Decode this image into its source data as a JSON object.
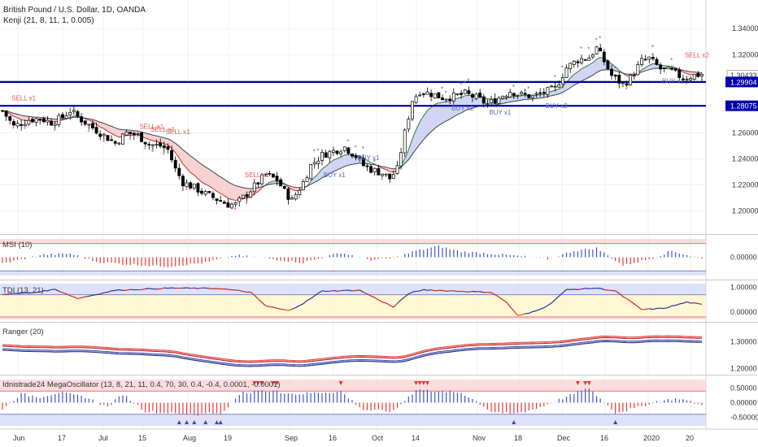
{
  "header": {
    "symbol": "British Pound / U.S. Dollar, 1D, OANDA",
    "indicator": "Kenji (21, 8, 11, 1, 0.005)"
  },
  "colors": {
    "bull": "#ffffff",
    "bear": "#000000",
    "hline": "#0000aa",
    "sell_cloud": "#f7c9c9",
    "buy_cloud": "#c9cdf2",
    "sell_text": "#ef5350",
    "buy_text": "#5c6bc0",
    "pos_bar": "#3f51d8",
    "neg_bar": "#e53935",
    "grid": "#eef0f3"
  },
  "chart_data": [
    {
      "type": "candlestick",
      "title": "British Pound / U.S. Dollar, 1D, OANDA",
      "y_ticks": [
        "1.34000",
        "1.32000",
        "1.30000",
        "1.28000",
        "1.26000",
        "1.24000",
        "1.22000",
        "1.20000"
      ],
      "x_ticks": [
        "Jun",
        "17",
        "Jul",
        "15",
        "Aug",
        "19",
        "Sep",
        "16",
        "Oct",
        "14",
        "Nov",
        "18",
        "Dec",
        "16",
        "2020",
        "20"
      ],
      "ylim": [
        1.186,
        1.357
      ],
      "price_label": "1.30433",
      "last_price": 1.30433,
      "horizontal_lines": [
        {
          "value": 1.29904,
          "label": "1.29904"
        },
        {
          "value": 1.28075,
          "label": "1.28075"
        }
      ],
      "anchors": [
        [
          0,
          1.277
        ],
        [
          3,
          1.265
        ],
        [
          7,
          1.27
        ],
        [
          10,
          1.271
        ],
        [
          13,
          1.268
        ],
        [
          16,
          1.272
        ],
        [
          18,
          1.277
        ],
        [
          21,
          1.27
        ],
        [
          24,
          1.264
        ],
        [
          27,
          1.258
        ],
        [
          30,
          1.252
        ],
        [
          33,
          1.26
        ],
        [
          36,
          1.258
        ],
        [
          39,
          1.251
        ],
        [
          42,
          1.25
        ],
        [
          44,
          1.247
        ],
        [
          46,
          1.232
        ],
        [
          48,
          1.222
        ],
        [
          51,
          1.218
        ],
        [
          54,
          1.213
        ],
        [
          57,
          1.209
        ],
        [
          60,
          1.205
        ],
        [
          62,
          1.205
        ],
        [
          65,
          1.213
        ],
        [
          68,
          1.222
        ],
        [
          70,
          1.228
        ],
        [
          73,
          1.224
        ],
        [
          75,
          1.215
        ],
        [
          77,
          1.208
        ],
        [
          80,
          1.222
        ],
        [
          82,
          1.235
        ],
        [
          85,
          1.243
        ],
        [
          88,
          1.246
        ],
        [
          91,
          1.249
        ],
        [
          94,
          1.242
        ],
        [
          96,
          1.235
        ],
        [
          98,
          1.232
        ],
        [
          101,
          1.229
        ],
        [
          103,
          1.225
        ],
        [
          105,
          1.232
        ],
        [
          107,
          1.26
        ],
        [
          109,
          1.285
        ],
        [
          111,
          1.292
        ],
        [
          114,
          1.29
        ],
        [
          117,
          1.287
        ],
        [
          120,
          1.288
        ],
        [
          123,
          1.29
        ],
        [
          126,
          1.287
        ],
        [
          129,
          1.282
        ],
        [
          132,
          1.287
        ],
        [
          135,
          1.292
        ],
        [
          138,
          1.289
        ],
        [
          141,
          1.288
        ],
        [
          144,
          1.291
        ],
        [
          147,
          1.294
        ],
        [
          150,
          1.31
        ],
        [
          153,
          1.316
        ],
        [
          156,
          1.318
        ],
        [
          158,
          1.325
        ],
        [
          160,
          1.315
        ],
        [
          162,
          1.304
        ],
        [
          165,
          1.297
        ],
        [
          167,
          1.302
        ],
        [
          170,
          1.315
        ],
        [
          172,
          1.317
        ],
        [
          175,
          1.309
        ],
        [
          178,
          1.307
        ],
        [
          181,
          1.302
        ],
        [
          184,
          1.304
        ],
        [
          186,
          1.305
        ]
      ],
      "annotations": [
        {
          "text": "SELL x1",
          "x": 5,
          "y": 1.285,
          "side": "sell"
        },
        {
          "text": "SELL x1",
          "x": 39,
          "y": 1.263,
          "side": "sell"
        },
        {
          "text": "SELL x1",
          "x": 42,
          "y": 1.261,
          "side": "sell"
        },
        {
          "text": "SELL x1",
          "x": 46,
          "y": 1.259,
          "side": "sell"
        },
        {
          "text": "SELL x1",
          "x": 67,
          "y": 1.226,
          "side": "sell"
        },
        {
          "text": "BUY x1",
          "x": 88,
          "y": 1.226,
          "side": "buy"
        },
        {
          "text": "BUY x1",
          "x": 97,
          "y": 1.239,
          "side": "buy"
        },
        {
          "text": "BUY x1",
          "x": 122,
          "y": 1.277,
          "side": "buy"
        },
        {
          "text": "BUY x1",
          "x": 132,
          "y": 1.274,
          "side": "buy"
        },
        {
          "text": "BUY x2",
          "x": 147,
          "y": 1.279,
          "side": "buy"
        },
        {
          "text": "BUY x1",
          "x": 178,
          "y": 1.298,
          "side": "buy"
        },
        {
          "text": "SELL x2",
          "x": 184,
          "y": 1.318,
          "side": "sell"
        }
      ]
    },
    {
      "type": "bar",
      "title": "MSI (10)",
      "ylim": [
        -1,
        1
      ],
      "y_ticks": [
        "0.00000"
      ],
      "bands": [
        0.75,
        -0.75
      ],
      "anchors": [
        [
          0,
          -0.35
        ],
        [
          10,
          0.12
        ],
        [
          18,
          0.2
        ],
        [
          25,
          -0.25
        ],
        [
          34,
          -0.4
        ],
        [
          44,
          -0.5
        ],
        [
          54,
          -0.3
        ],
        [
          62,
          0.1
        ],
        [
          70,
          -0.05
        ],
        [
          80,
          -0.3
        ],
        [
          90,
          0.25
        ],
        [
          98,
          -0.15
        ],
        [
          104,
          -0.05
        ],
        [
          110,
          0.35
        ],
        [
          116,
          0.6
        ],
        [
          122,
          0.3
        ],
        [
          130,
          0.2
        ],
        [
          138,
          0.05
        ],
        [
          145,
          -0.1
        ],
        [
          152,
          0.35
        ],
        [
          158,
          0.5
        ],
        [
          165,
          -0.45
        ],
        [
          172,
          -0.1
        ],
        [
          178,
          0.35
        ],
        [
          186,
          -0.1
        ]
      ]
    },
    {
      "type": "line",
      "title": "TDI (13, 21)",
      "ylim": [
        -0.3,
        1.15
      ],
      "y_ticks": [
        "1.00000",
        "0.00000"
      ],
      "bands": [
        0.7,
        -0.2
      ],
      "anchors": [
        [
          0,
          0.72
        ],
        [
          8,
          0.78
        ],
        [
          14,
          0.92
        ],
        [
          20,
          0.55
        ],
        [
          30,
          0.88
        ],
        [
          45,
          0.97
        ],
        [
          58,
          0.95
        ],
        [
          66,
          0.8
        ],
        [
          70,
          0.25
        ],
        [
          76,
          0.05
        ],
        [
          80,
          0.35
        ],
        [
          85,
          0.85
        ],
        [
          95,
          0.88
        ],
        [
          100,
          0.5
        ],
        [
          104,
          0.2
        ],
        [
          108,
          0.75
        ],
        [
          112,
          0.9
        ],
        [
          120,
          0.85
        ],
        [
          130,
          0.8
        ],
        [
          134,
          0.4
        ],
        [
          137,
          -0.15
        ],
        [
          140,
          -0.05
        ],
        [
          145,
          0.25
        ],
        [
          150,
          0.9
        ],
        [
          158,
          0.97
        ],
        [
          163,
          0.85
        ],
        [
          170,
          0.1
        ],
        [
          176,
          0.15
        ],
        [
          182,
          0.4
        ],
        [
          186,
          0.3
        ]
      ]
    },
    {
      "type": "line",
      "title": "Ranger (20)",
      "ylim": [
        1.19,
        1.355
      ],
      "y_ticks": [
        "1.30000",
        "1.20000"
      ],
      "series_count": 6
    },
    {
      "type": "bar",
      "title": "Idnistrade24 MegaOscillator (13, 8, 21, 11, 0.4, 70, 30, 0.4, -0.4, 0.0001, -0.0001)",
      "ylim": [
        -0.8,
        0.8
      ],
      "y_ticks": [
        "0.50000",
        "0.00000",
        "-0.50000"
      ],
      "bands": [
        0.4,
        -0.4
      ],
      "anchors": [
        [
          0,
          -0.2
        ],
        [
          5,
          0.3
        ],
        [
          10,
          0.2
        ],
        [
          15,
          0.35
        ],
        [
          22,
          0.2
        ],
        [
          28,
          -0.15
        ],
        [
          32,
          0.3
        ],
        [
          38,
          -0.3
        ],
        [
          45,
          -0.35
        ],
        [
          52,
          -0.4
        ],
        [
          58,
          -0.35
        ],
        [
          64,
          0.35
        ],
        [
          72,
          0.4
        ],
        [
          78,
          0.3
        ],
        [
          84,
          0.35
        ],
        [
          90,
          0.38
        ],
        [
          96,
          -0.25
        ],
        [
          104,
          -0.3
        ],
        [
          110,
          0.45
        ],
        [
          116,
          0.4
        ],
        [
          122,
          0.35
        ],
        [
          126,
          0.05
        ],
        [
          130,
          -0.3
        ],
        [
          136,
          -0.4
        ],
        [
          142,
          -0.2
        ],
        [
          148,
          0.1
        ],
        [
          156,
          0.5
        ],
        [
          163,
          -0.35
        ],
        [
          168,
          -0.2
        ],
        [
          174,
          0.05
        ],
        [
          180,
          0.15
        ],
        [
          186,
          -0.1
        ]
      ]
    }
  ]
}
